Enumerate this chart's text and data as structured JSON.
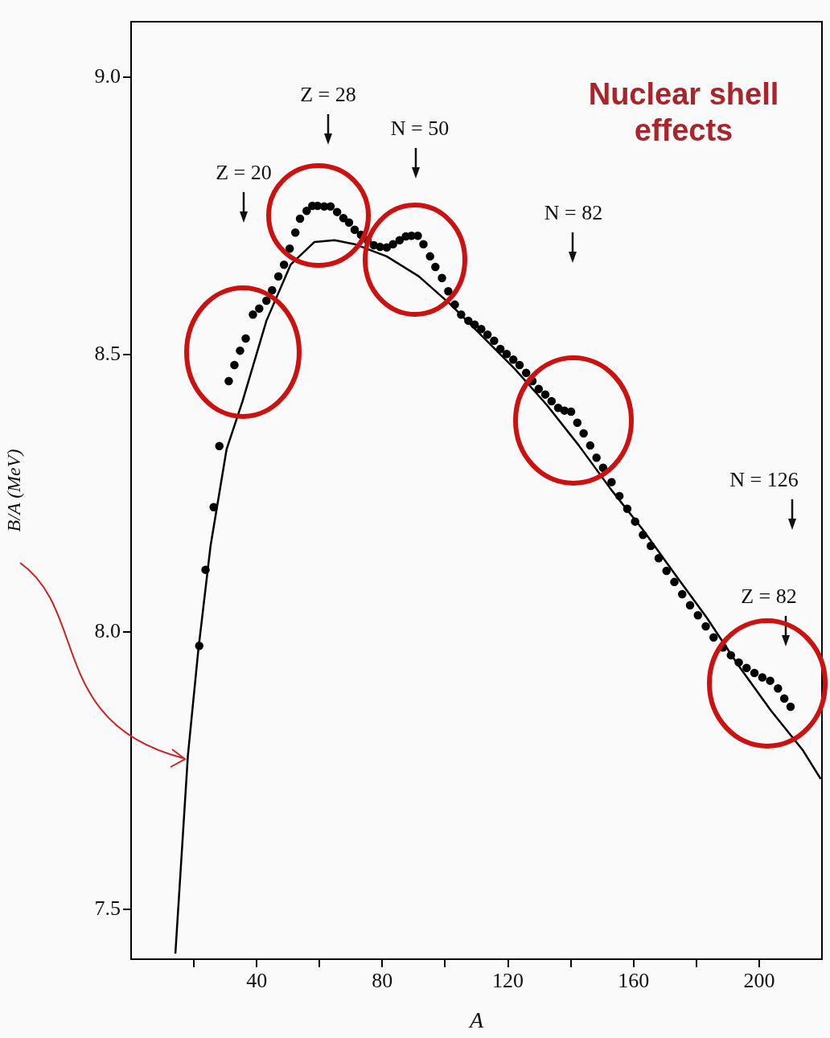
{
  "chart_data": {
    "type": "scatter",
    "xlabel": "A",
    "ylabel": "B/A (MeV)",
    "xlim": [
      0,
      220
    ],
    "ylim": [
      7.41,
      9.1
    ],
    "xticks": [
      {
        "value": 20,
        "label": null
      },
      40,
      {
        "value": 60,
        "label": null
      },
      80,
      {
        "value": 100,
        "label": null
      },
      120,
      {
        "value": 140,
        "label": null
      },
      160,
      {
        "value": 180,
        "label": null
      },
      200
    ],
    "yticks": [
      {
        "value": 7.5,
        "label": "7.5"
      },
      {
        "value": 8,
        "label": "8.0"
      },
      {
        "value": 8.5,
        "label": "8.5"
      },
      {
        "value": 9,
        "label": "9.0"
      }
    ],
    "legend": false,
    "series": [
      {
        "type": "scatter",
        "marker": "circle",
        "color": "#000000",
        "x": [
          21.7,
          23.7,
          26.3,
          28.1,
          31.1,
          32.9,
          34.7,
          36.5,
          38.8,
          40.8,
          43.1,
          44.9,
          46.9,
          48.7,
          50.5,
          52.3,
          53.8,
          55.9,
          57.7,
          59.4,
          61.5,
          63.5,
          65.6,
          67.6,
          69.4,
          71.2,
          73.2,
          75.3,
          77.3,
          79.3,
          81.4,
          83.4,
          85.5,
          87.5,
          89.3,
          91.3,
          93.1,
          95.2,
          96.9,
          99,
          101,
          103.1,
          105.1,
          107.4,
          109.4,
          111.5,
          113.5,
          115.6,
          117.6,
          119.6,
          121.7,
          123.7,
          125.8,
          127.8,
          129.8,
          131.9,
          133.9,
          136,
          138,
          140.1,
          142.1,
          144.1,
          146.2,
          148.2,
          150.3,
          153,
          155.5,
          158,
          160.5,
          163,
          165.5,
          168,
          170.5,
          173,
          175.5,
          178,
          180.5,
          183,
          185.5,
          188.5,
          191,
          193.5,
          196,
          198.5,
          201,
          203.5,
          206,
          208,
          210
        ],
        "values": [
          7.975,
          8.112,
          8.225,
          8.335,
          8.452,
          8.481,
          8.507,
          8.529,
          8.572,
          8.583,
          8.597,
          8.616,
          8.641,
          8.662,
          8.691,
          8.72,
          8.745,
          8.759,
          8.768,
          8.768,
          8.767,
          8.767,
          8.757,
          8.746,
          8.738,
          8.725,
          8.716,
          8.706,
          8.697,
          8.694,
          8.693,
          8.699,
          8.706,
          8.713,
          8.714,
          8.714,
          8.699,
          8.677,
          8.658,
          8.638,
          8.614,
          8.59,
          8.572,
          8.561,
          8.554,
          8.546,
          8.536,
          8.525,
          8.51,
          8.501,
          8.491,
          8.481,
          8.467,
          8.452,
          8.438,
          8.428,
          8.416,
          8.404,
          8.399,
          8.397,
          8.377,
          8.358,
          8.336,
          8.314,
          8.296,
          8.27,
          8.245,
          8.222,
          8.199,
          8.175,
          8.155,
          8.133,
          8.11,
          8.09,
          8.068,
          8.048,
          8.03,
          8.01,
          7.99,
          7.972,
          7.958,
          7.945,
          7.935,
          7.926,
          7.918,
          7.912,
          7.898,
          7.88,
          7.865
        ]
      },
      {
        "type": "line",
        "marker": "none",
        "color": "#000000",
        "x": [
          14.1,
          18.1,
          21.4,
          25.3,
          30.4,
          35.5,
          43.1,
          50.8,
          58.4,
          64.8,
          71.2,
          81.4,
          91.6,
          101.8,
          112,
          122.2,
          132.4,
          142.6,
          152.8,
          163,
          173.2,
          183.4,
          193.6,
          203.8,
          214,
          219.6
        ],
        "values": [
          7.42,
          7.778,
          7.967,
          8.155,
          8.329,
          8.416,
          8.561,
          8.662,
          8.703,
          8.706,
          8.699,
          8.677,
          8.641,
          8.59,
          8.532,
          8.474,
          8.409,
          8.336,
          8.257,
          8.184,
          8.104,
          8.025,
          7.938,
          7.858,
          7.786,
          7.735
        ]
      }
    ],
    "annotations": [
      "Z = 20",
      "Z = 28",
      "N = 50",
      "N = 82",
      "N = 126",
      "Z = 82",
      "Nuclear shell effects"
    ]
  }
}
